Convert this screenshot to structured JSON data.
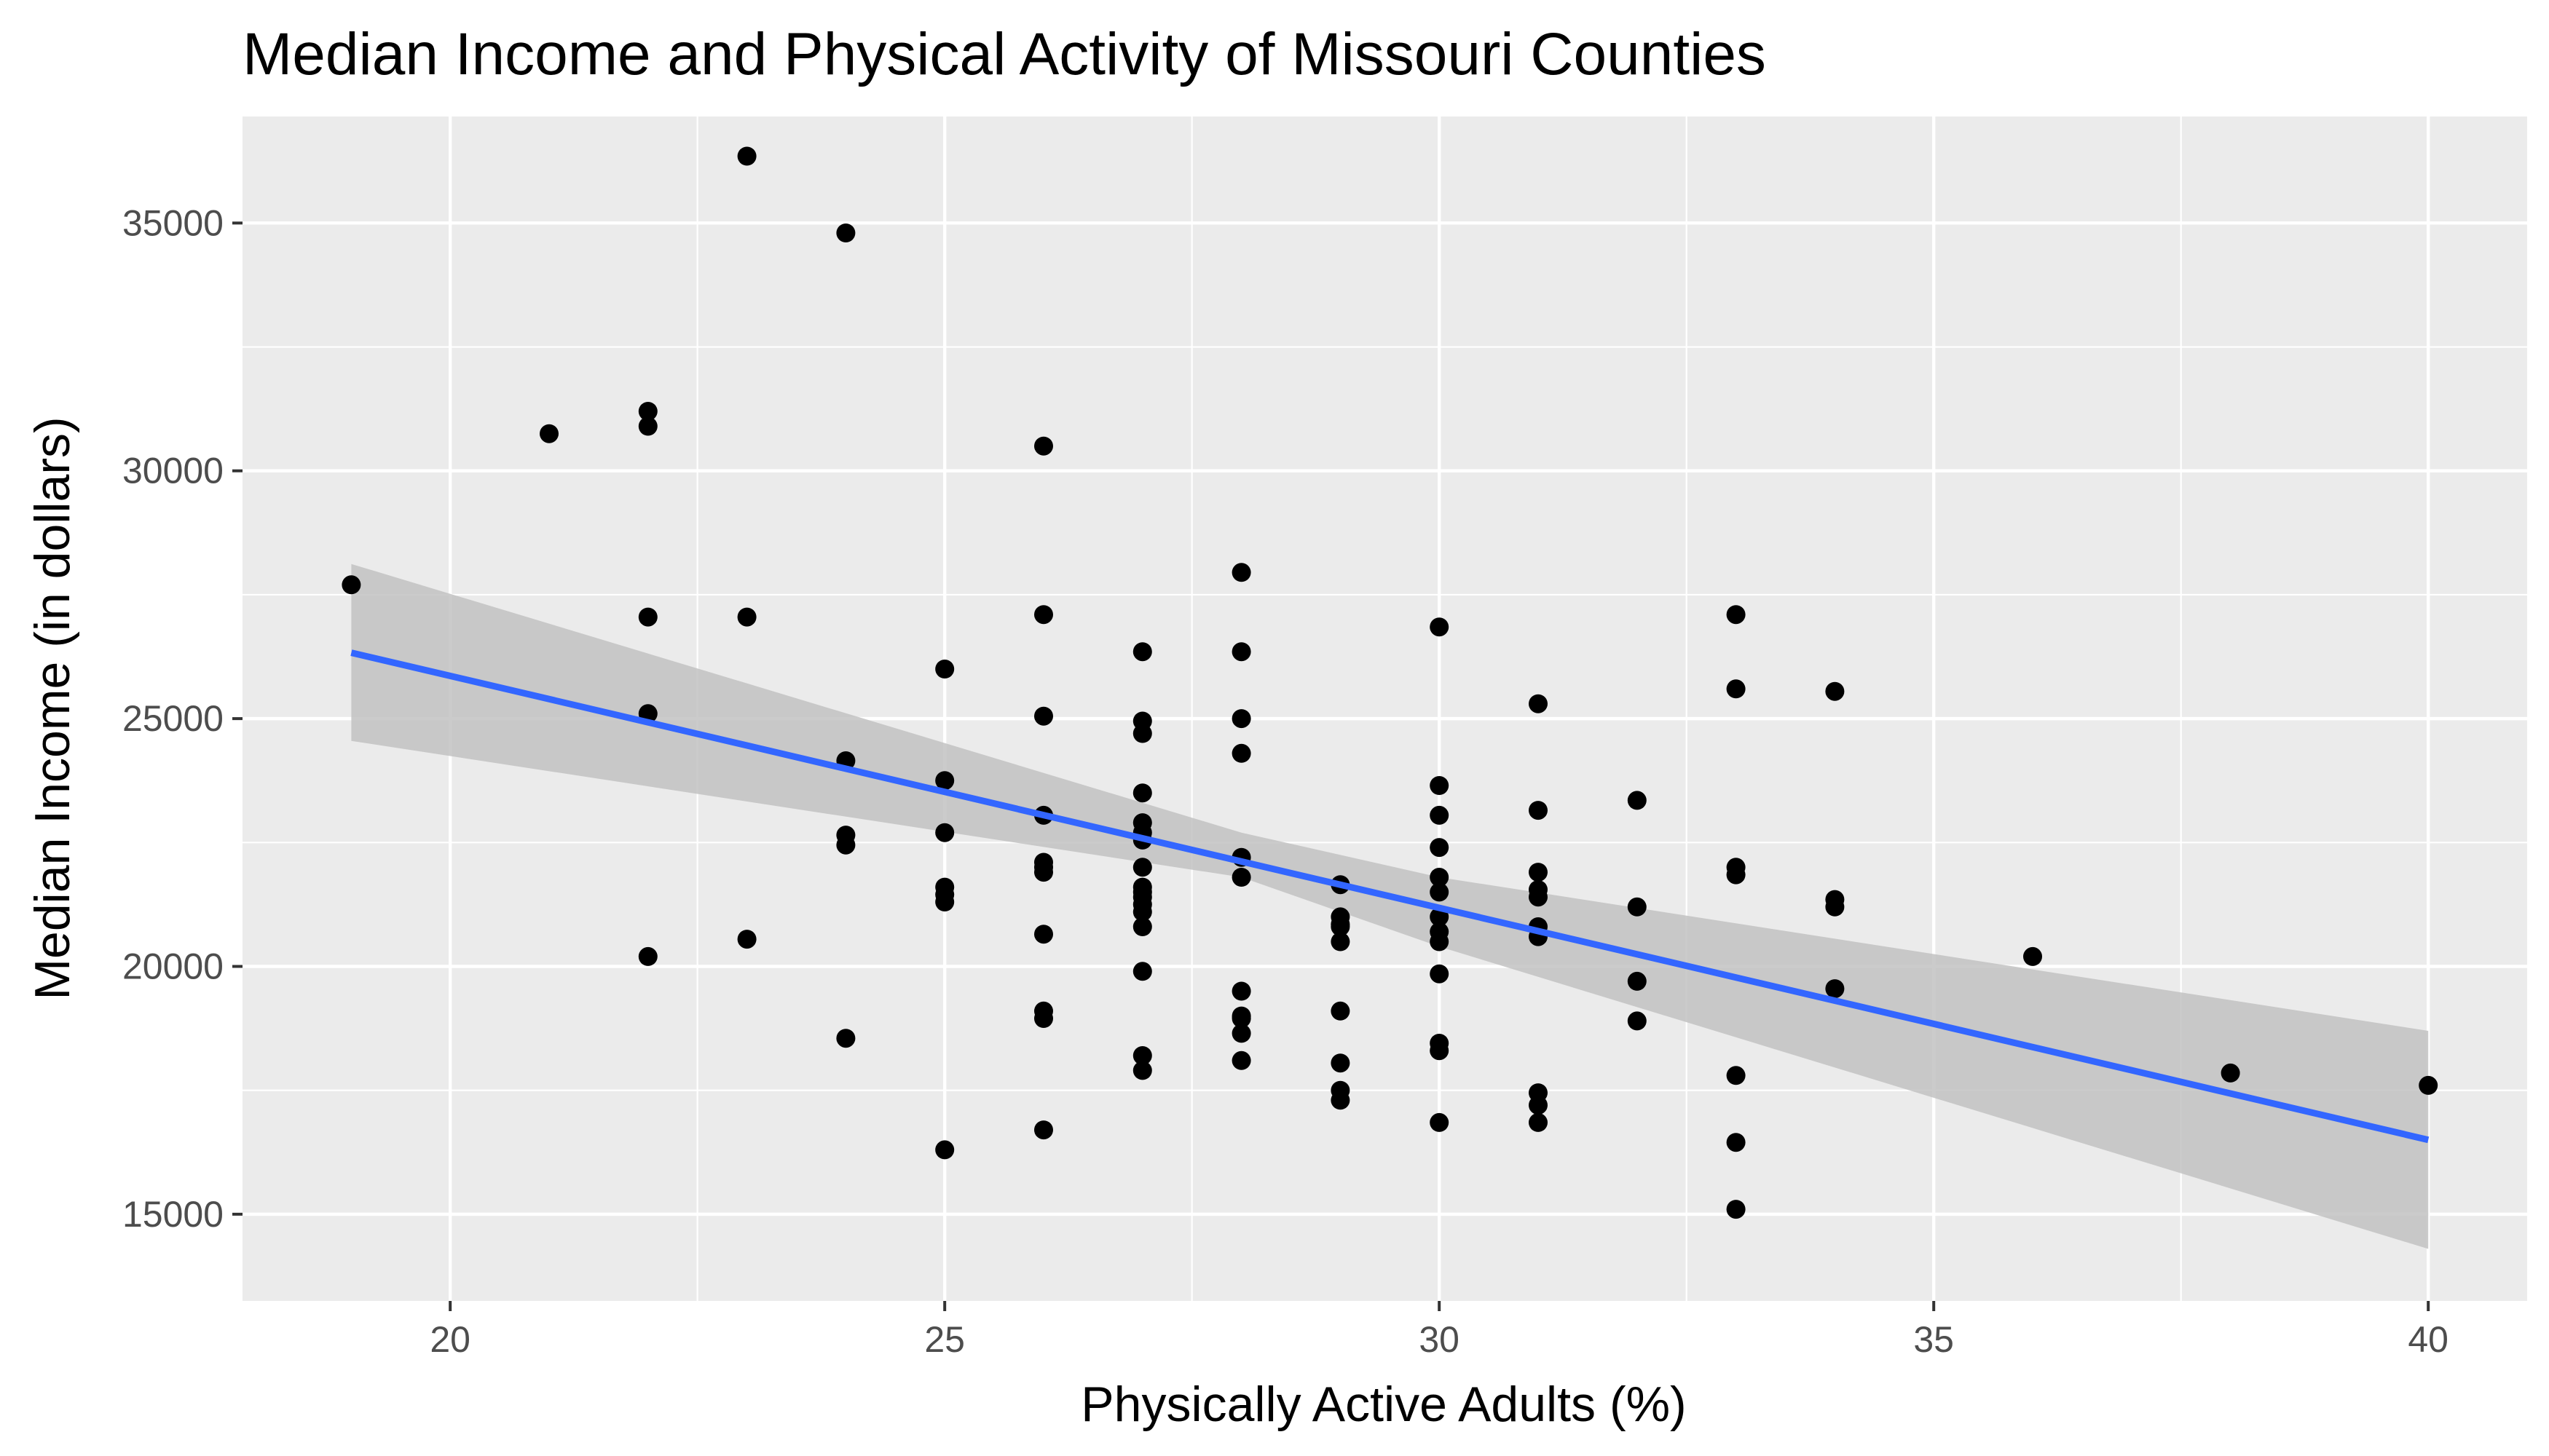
{
  "chart_data": {
    "type": "scatter",
    "title": "Median Income and Physical Activity of Missouri Counties",
    "xlabel": "Physically Active Adults (%)",
    "ylabel": "Median Income (in dollars)",
    "xlim": [
      17.9,
      41.0
    ],
    "ylim": [
      13250,
      37150
    ],
    "xticks": [
      20,
      25,
      30,
      35,
      40
    ],
    "yticks": [
      15000,
      20000,
      25000,
      30000,
      35000
    ],
    "grid": true,
    "legend": "none",
    "colors": {
      "panel": "#ebebeb",
      "grid": "#ffffff",
      "points": "#000000",
      "trend": "#3366ff",
      "band": "#c2c2c2",
      "tick_text": "#4d4d4d"
    },
    "trend_line": {
      "x": [
        19,
        40
      ],
      "y": [
        26330,
        16500
      ]
    },
    "confidence_band": {
      "x": [
        19,
        28,
        30,
        40
      ],
      "lower": [
        24550,
        21800,
        20400,
        14300
      ],
      "upper": [
        28120,
        22700,
        21800,
        18700
      ]
    },
    "points": {
      "x": [
        19,
        21,
        22,
        22,
        22,
        22,
        22,
        23,
        23,
        23,
        24,
        24,
        24,
        24,
        24,
        25,
        25,
        25,
        25,
        25,
        25,
        25,
        26,
        26,
        26,
        26,
        26,
        26,
        26,
        26,
        26,
        26,
        26,
        27,
        27,
        27,
        27,
        27,
        27,
        27,
        27,
        27,
        27,
        27,
        27,
        27,
        27,
        27,
        27,
        27,
        28,
        28,
        28,
        28,
        28,
        28,
        28,
        28,
        28,
        28,
        28,
        29,
        29,
        29,
        29,
        29,
        29,
        29,
        29,
        29,
        30,
        30,
        30,
        30,
        30,
        30,
        30,
        30,
        30,
        30,
        30,
        30,
        30,
        31,
        31,
        31,
        31,
        31,
        31,
        31,
        31,
        31,
        31,
        32,
        32,
        32,
        32,
        33,
        33,
        33,
        33,
        33,
        33,
        33,
        34,
        34,
        34,
        34,
        36,
        38,
        40
      ],
      "y": [
        27700,
        30750,
        31200,
        30900,
        27050,
        25100,
        20200,
        36350,
        27050,
        20550,
        34800,
        24150,
        22650,
        22450,
        18550,
        26000,
        23750,
        22700,
        21600,
        21450,
        21300,
        16300,
        30500,
        27100,
        25050,
        23050,
        22100,
        21900,
        20650,
        19100,
        18950,
        16700,
        22000,
        26350,
        24950,
        24700,
        23500,
        22900,
        22700,
        22550,
        22000,
        21600,
        21400,
        21250,
        21100,
        20800,
        19900,
        18200,
        17900,
        21500,
        27950,
        26350,
        25000,
        24300,
        22200,
        21800,
        19500,
        18950,
        18650,
        18100,
        19000,
        21650,
        21000,
        20800,
        20500,
        19100,
        18050,
        17500,
        17300,
        20850,
        26850,
        23650,
        23050,
        22400,
        21800,
        21500,
        20700,
        20500,
        19850,
        18450,
        18300,
        16850,
        21000,
        25300,
        23150,
        21900,
        21550,
        20800,
        20600,
        17450,
        17200,
        16850,
        21400,
        23350,
        21200,
        19700,
        18900,
        27100,
        25600,
        22000,
        21850,
        17800,
        16450,
        15100,
        25550,
        21350,
        21200,
        19550,
        20200,
        17850,
        17600
      ]
    }
  }
}
